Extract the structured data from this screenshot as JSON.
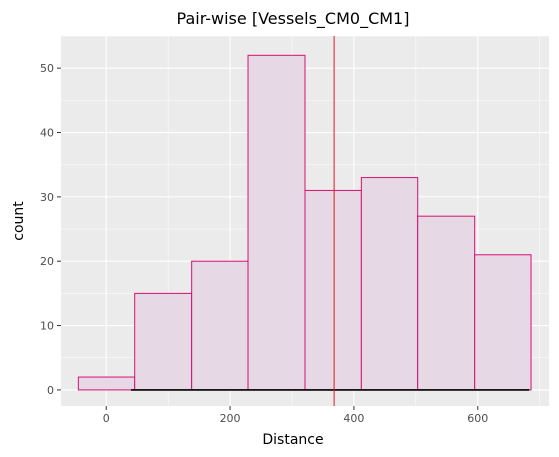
{
  "chart_data": {
    "type": "histogram",
    "title": "Pair-wise [Vessels_CM0_CM1]",
    "xlabel": "Distance",
    "ylabel": "count",
    "xlim": [
      -73,
      715
    ],
    "ylim": [
      -2.5,
      55
    ],
    "x_ticks": [
      0,
      200,
      400,
      600
    ],
    "y_ticks": [
      0,
      10,
      20,
      30,
      40,
      50
    ],
    "grid": true,
    "bins": [
      {
        "x0": -45,
        "x1": 46,
        "count": 2
      },
      {
        "x0": 46,
        "x1": 138,
        "count": 15
      },
      {
        "x0": 138,
        "x1": 229,
        "count": 20
      },
      {
        "x0": 229,
        "x1": 321,
        "count": 52
      },
      {
        "x0": 321,
        "x1": 412,
        "count": 31
      },
      {
        "x0": 412,
        "x1": 503,
        "count": 33
      },
      {
        "x0": 503,
        "x1": 595,
        "count": 27
      },
      {
        "x0": 595,
        "x1": 686,
        "count": 21
      }
    ],
    "vline": {
      "x": 368
    },
    "rug_line": {
      "x0": 40,
      "x1": 683,
      "y": 0
    },
    "colors": {
      "bar_fill": "#e6d8e4",
      "bar_stroke": "#d6126f",
      "vline": "#e0191f",
      "rug": "#000000",
      "panel": "#ebebeb",
      "grid": "#ffffff"
    }
  }
}
